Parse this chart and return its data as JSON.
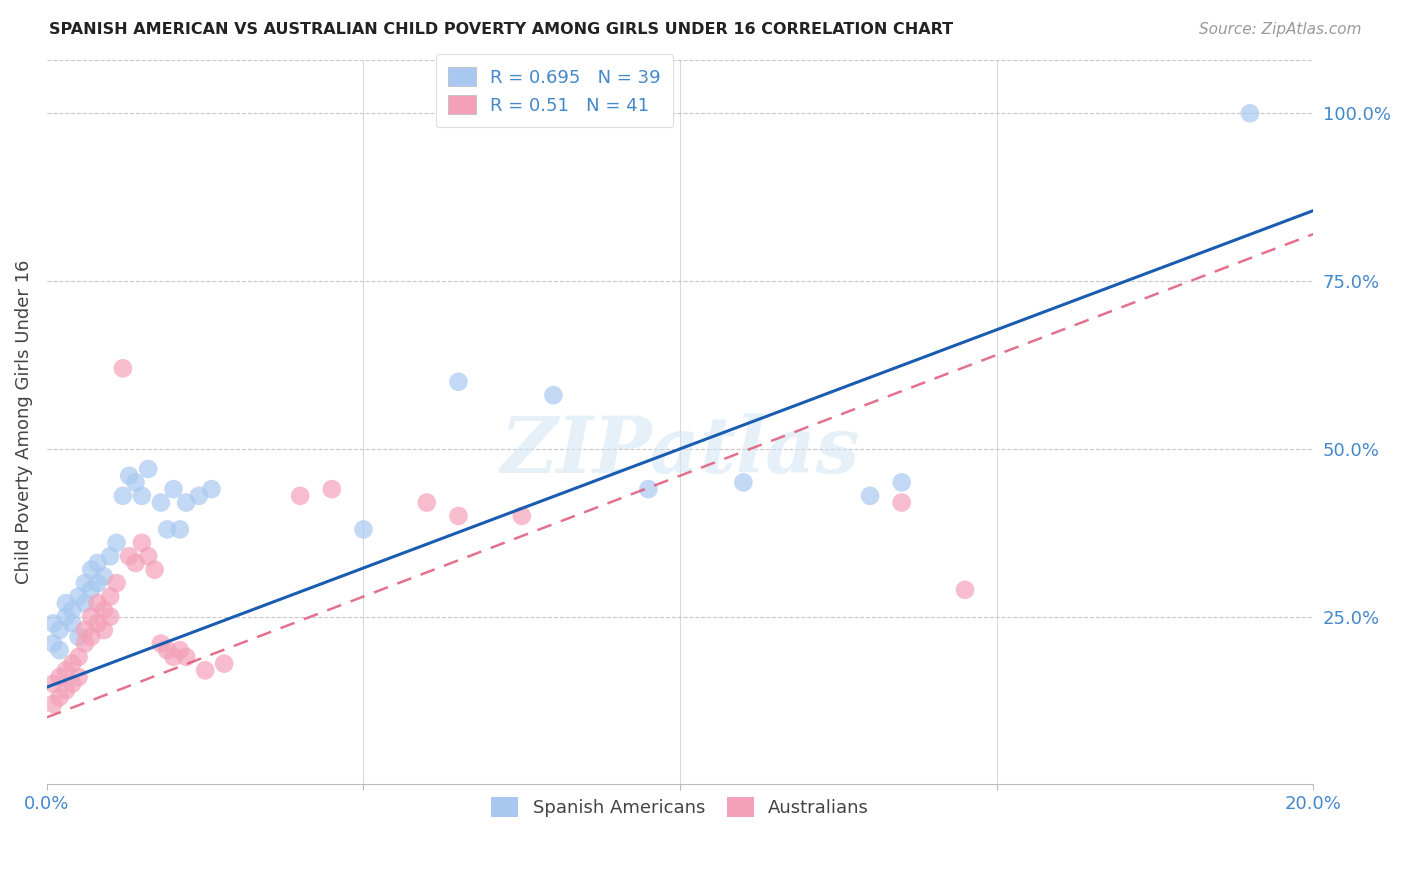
{
  "title": "SPANISH AMERICAN VS AUSTRALIAN CHILD POVERTY AMONG GIRLS UNDER 16 CORRELATION CHART",
  "source": "Source: ZipAtlas.com",
  "ylabel": "Child Poverty Among Girls Under 16",
  "xlim": [
    0.0,
    0.2
  ],
  "ylim": [
    0.0,
    1.08
  ],
  "blue_R": 0.695,
  "blue_N": 39,
  "pink_R": 0.51,
  "pink_N": 41,
  "blue_color": "#a8c8f0",
  "pink_color": "#f4a0b8",
  "blue_line_color": "#1a5cb0",
  "pink_line_color": "#e05878",
  "watermark": "ZIPatlas",
  "legend_label_blue": "Spanish Americans",
  "legend_label_pink": "Australians",
  "blue_scatter_x": [
    0.001,
    0.001,
    0.002,
    0.002,
    0.003,
    0.003,
    0.004,
    0.004,
    0.005,
    0.005,
    0.006,
    0.006,
    0.007,
    0.007,
    0.008,
    0.008,
    0.009,
    0.01,
    0.011,
    0.012,
    0.013,
    0.014,
    0.015,
    0.016,
    0.018,
    0.019,
    0.02,
    0.021,
    0.022,
    0.024,
    0.026,
    0.05,
    0.065,
    0.08,
    0.095,
    0.11,
    0.13,
    0.135,
    0.19
  ],
  "blue_scatter_y": [
    0.21,
    0.24,
    0.2,
    0.23,
    0.25,
    0.27,
    0.24,
    0.26,
    0.22,
    0.28,
    0.27,
    0.3,
    0.29,
    0.32,
    0.3,
    0.33,
    0.31,
    0.34,
    0.36,
    0.43,
    0.46,
    0.45,
    0.43,
    0.47,
    0.42,
    0.38,
    0.44,
    0.38,
    0.42,
    0.43,
    0.44,
    0.38,
    0.6,
    0.58,
    0.44,
    0.45,
    0.43,
    0.45,
    1.0
  ],
  "pink_scatter_x": [
    0.001,
    0.001,
    0.002,
    0.002,
    0.003,
    0.003,
    0.004,
    0.004,
    0.005,
    0.005,
    0.006,
    0.006,
    0.007,
    0.007,
    0.008,
    0.008,
    0.009,
    0.009,
    0.01,
    0.01,
    0.011,
    0.012,
    0.013,
    0.014,
    0.015,
    0.016,
    0.017,
    0.018,
    0.019,
    0.02,
    0.021,
    0.022,
    0.025,
    0.028,
    0.04,
    0.045,
    0.06,
    0.065,
    0.075,
    0.135,
    0.145
  ],
  "pink_scatter_y": [
    0.12,
    0.15,
    0.13,
    0.16,
    0.14,
    0.17,
    0.15,
    0.18,
    0.16,
    0.19,
    0.21,
    0.23,
    0.22,
    0.25,
    0.24,
    0.27,
    0.23,
    0.26,
    0.28,
    0.25,
    0.3,
    0.62,
    0.34,
    0.33,
    0.36,
    0.34,
    0.32,
    0.21,
    0.2,
    0.19,
    0.2,
    0.19,
    0.17,
    0.18,
    0.43,
    0.44,
    0.42,
    0.4,
    0.4,
    0.42,
    0.29
  ],
  "blue_line_x": [
    0.0,
    0.2
  ],
  "blue_line_y": [
    0.145,
    0.855
  ],
  "pink_line_x": [
    0.0,
    0.2
  ],
  "pink_line_y": [
    0.1,
    0.82
  ]
}
